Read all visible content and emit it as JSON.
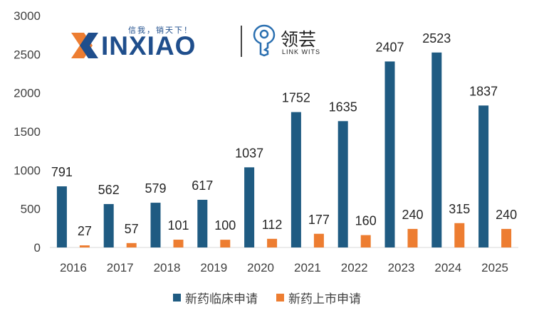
{
  "logos": {
    "xinxiao": {
      "name": "INXIAO",
      "slogan": "信我，销天下！"
    },
    "linkwits": {
      "name_cn": "领芸",
      "name_en": "LINK WITS"
    }
  },
  "colors": {
    "clinical": "#1f5b82",
    "market": "#ed7d31",
    "axis_text": "#404040",
    "label_text": "#262626"
  },
  "chart_data": {
    "type": "bar",
    "categories": [
      "2016",
      "2017",
      "2018",
      "2019",
      "2020",
      "2021",
      "2022",
      "2023",
      "2024",
      "2025"
    ],
    "series": [
      {
        "name": "新药临床申请",
        "values": [
          791,
          562,
          579,
          617,
          1037,
          1752,
          1635,
          2407,
          2523,
          1837
        ]
      },
      {
        "name": "新药上市申请",
        "values": [
          27,
          57,
          101,
          100,
          112,
          177,
          160,
          240,
          315,
          240
        ]
      }
    ],
    "y_ticks": [
      0,
      500,
      1000,
      1500,
      2000,
      2500,
      3000
    ],
    "ylim": [
      0,
      3000
    ],
    "grid": false,
    "legend_position": "bottom"
  }
}
